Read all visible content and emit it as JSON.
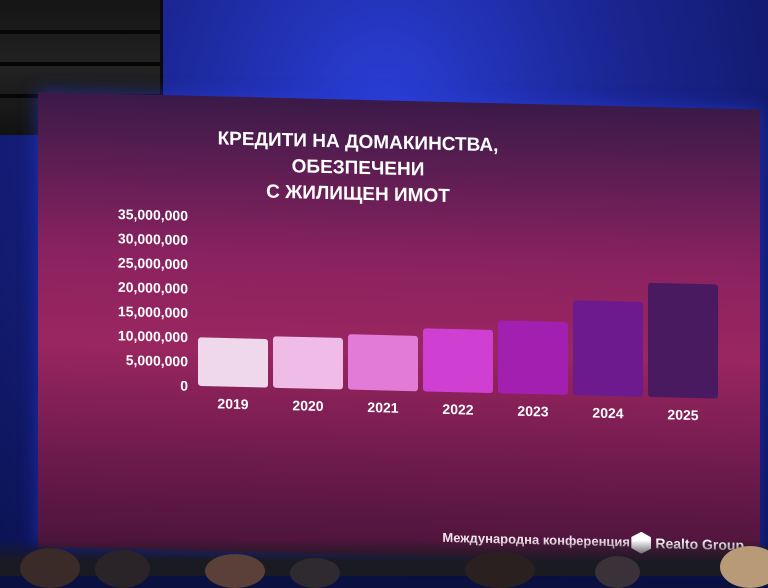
{
  "chart_data": {
    "type": "bar",
    "title": [
      "КРЕДИТИ НА ДОМАКИНСТВА,",
      "ОБЕЗПЕЧЕНИ",
      "С ЖИЛИЩЕН ИМОТ"
    ],
    "categories": [
      "2019",
      "2020",
      "2021",
      "2022",
      "2023",
      "2024",
      "2025"
    ],
    "values": [
      10000000,
      10600000,
      11400000,
      13000000,
      15000000,
      19500000,
      23500000
    ],
    "y_ticks": [
      "0",
      "5,000,000",
      "10,000,000",
      "15,000,000",
      "20,000,000",
      "25,000,000",
      "30,000,000",
      "35,000,000"
    ],
    "ylim": [
      0,
      35000000
    ],
    "grid": false,
    "bar_colors": [
      "#f0d8ec",
      "#eebce6",
      "#e27ad8",
      "#cf3fd2",
      "#a21fb0",
      "#6d1a8e",
      "#4a1a60"
    ]
  },
  "footer": {
    "conference": "Международна конференция",
    "brand": "Realto Group"
  }
}
